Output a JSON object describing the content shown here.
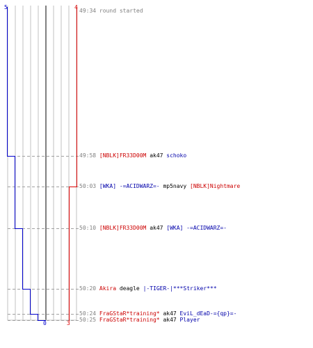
{
  "colors": {
    "team_blue": "#0000cc",
    "team_red": "#dd0000",
    "grid": "#c0c0c0",
    "dash": "#a0a0a0",
    "text_gray": "#808080"
  },
  "scores": {
    "blue_start": "5",
    "red_start": "4",
    "blue_end": "0",
    "red_end": "3"
  },
  "events": [
    {
      "time": "49:34",
      "type": "info",
      "text": "round started"
    },
    {
      "time": "49:58",
      "type": "kill",
      "killer": "[NBLK]FR33D00M",
      "killer_team": "red",
      "weapon": "ak47",
      "victim": "schoko",
      "victim_team": "blue"
    },
    {
      "time": "50:03",
      "type": "kill",
      "killer": "[WKA] -=ACIDWARZ=-",
      "killer_team": "blue",
      "weapon": "mp5navy",
      "victim": "[NBLK]Nightmare",
      "victim_team": "red"
    },
    {
      "time": "50:10",
      "type": "kill",
      "killer": "[NBLK]FR33D00M",
      "killer_team": "red",
      "weapon": "ak47",
      "victim": "[WKA] -=ACIDWARZ=-",
      "victim_team": "blue"
    },
    {
      "time": "50:20",
      "type": "kill",
      "killer": "Akira",
      "killer_team": "red",
      "weapon": "deagle",
      "victim": "|-TIGER-|***Striker***",
      "victim_team": "blue"
    },
    {
      "time": "50:24",
      "type": "kill",
      "killer": "FraGStaR*training*",
      "killer_team": "red",
      "weapon": "ak47",
      "victim": "EviL_dEaD-={qp}=-",
      "victim_team": "blue"
    },
    {
      "time": "50:25",
      "type": "kill",
      "killer": "FraGStaR*training*",
      "killer_team": "red",
      "weapon": "ak47",
      "victim": "Player",
      "victim_team": "blue"
    }
  ]
}
